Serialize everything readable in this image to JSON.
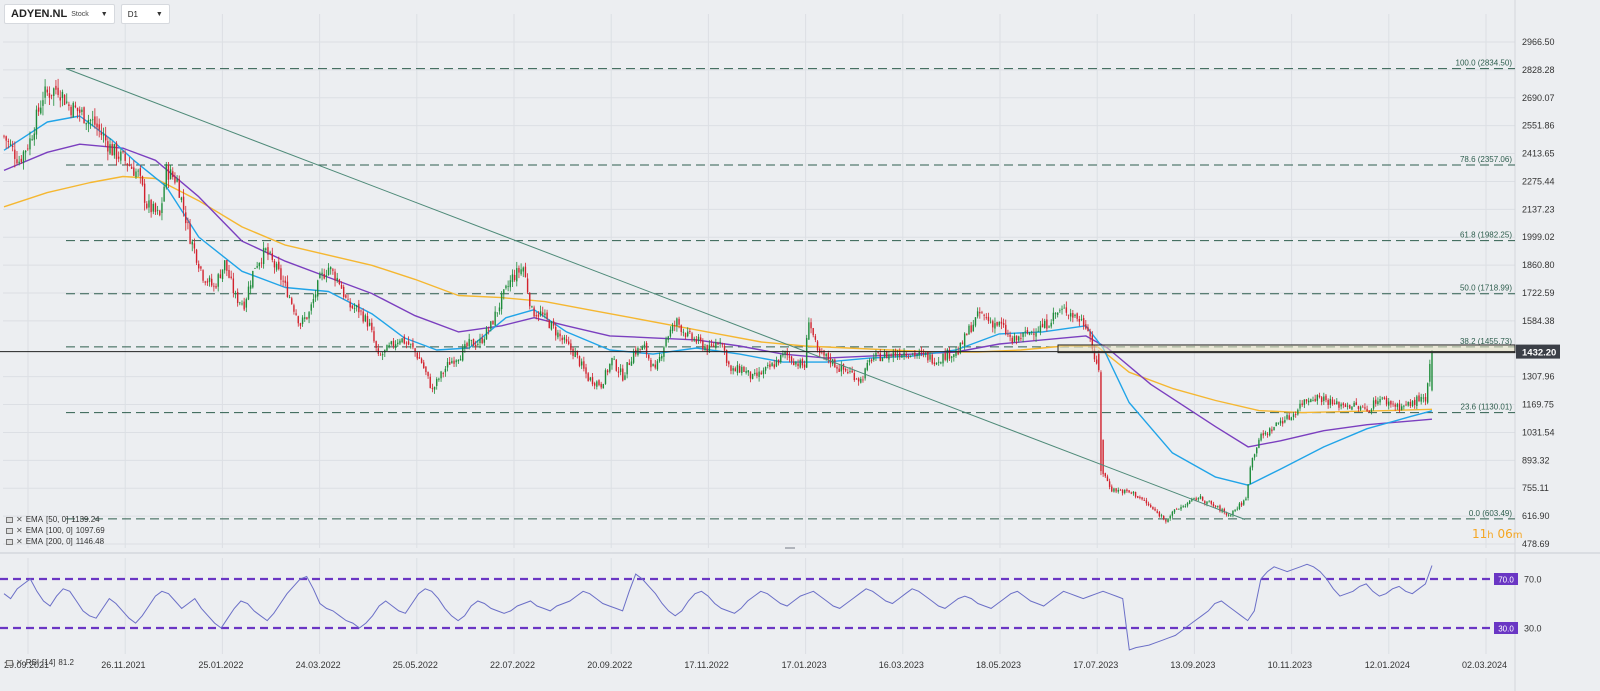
{
  "header": {
    "symbol": "ADYEN.NL",
    "symbol_type": "Stock",
    "timeframe": "D1"
  },
  "indicators": [
    {
      "label": "EMA",
      "params": "[50,  0]",
      "value": "1139.24",
      "color": "#20a4e8"
    },
    {
      "label": "EMA",
      "params": "[100,  0]",
      "value": "1097.69",
      "color": "#7b3fbf"
    },
    {
      "label": "EMA",
      "params": "[200,  0]",
      "value": "1146.48",
      "color": "#f5b731"
    }
  ],
  "timer": {
    "hours": "11",
    "h": "h",
    "minutes": "06",
    "m": "m"
  },
  "rsi": {
    "label": "RSI",
    "params": "[14]",
    "value": "81.2",
    "overbought": "70.0",
    "oversold": "30.0"
  },
  "colors": {
    "bull": "#1e8c3a",
    "bear": "#d2222d",
    "ema50": "#20a4e8",
    "ema100": "#7b3fbf",
    "ema200": "#f5b731",
    "rsi_line": "#6b6fc7",
    "rsi_levels": "#6a36c4",
    "fib": "#2e5e4e",
    "trendline": "#4e8a78",
    "price_tag": "#3b3f47"
  },
  "chart_data": [
    {
      "type": "candlestick",
      "title": "ADYEN.NL",
      "timeframe": "D1",
      "x_tick_labels": [
        "29.09.2021",
        "26.11.2021",
        "25.01.2022",
        "24.03.2022",
        "25.05.2022",
        "22.07.2022",
        "20.09.2022",
        "17.11.2022",
        "17.01.2023",
        "16.03.2023",
        "18.05.2023",
        "17.07.2023",
        "13.09.2023",
        "10.11.2023",
        "12.01.2024",
        "02.03.2024"
      ],
      "y_tick_labels": [
        "2966.50",
        "2828.28",
        "2690.07",
        "2551.86",
        "2413.65",
        "2275.44",
        "2137.23",
        "1999.02",
        "1860.80",
        "1722.59",
        "1584.38",
        "1307.96",
        "1169.75",
        "1031.54",
        "893.32",
        "755.11",
        "616.90",
        "478.69"
      ],
      "ylim": [
        478.69,
        2966.5
      ],
      "last_price": "1432.20",
      "fibonacci": [
        {
          "label": "100.0 (2834.50)",
          "value": 2834.5
        },
        {
          "label": "78.6 (2357.06)",
          "value": 2357.06
        },
        {
          "label": "61.8 (1982.25)",
          "value": 1982.25
        },
        {
          "label": "50.0 (1718.99)",
          "value": 1718.99
        },
        {
          "label": "38.2 (1455.73)",
          "value": 1455.73
        },
        {
          "label": "23.6 (1130.01)",
          "value": 1130.01
        },
        {
          "label": "0.0 (603.49)",
          "value": 603.49
        }
      ],
      "trendline": [
        [
          "29.09.2021-ish",
          2834.5
        ],
        [
          "13.09.2023-ish",
          600
        ]
      ],
      "close_path": [
        [
          0,
          2500
        ],
        [
          7,
          2380
        ],
        [
          12,
          2480
        ],
        [
          18,
          2700
        ],
        [
          25,
          2740
        ],
        [
          30,
          2650
        ],
        [
          35,
          2620
        ],
        [
          42,
          2560
        ],
        [
          50,
          2430
        ],
        [
          57,
          2370
        ],
        [
          62,
          2310
        ],
        [
          66,
          2160
        ],
        [
          72,
          2100
        ],
        [
          75,
          2330
        ],
        [
          80,
          2280
        ],
        [
          86,
          2000
        ],
        [
          92,
          1810
        ],
        [
          97,
          1750
        ],
        [
          102,
          1870
        ],
        [
          107,
          1700
        ],
        [
          111,
          1670
        ],
        [
          116,
          1860
        ],
        [
          121,
          1930
        ],
        [
          127,
          1820
        ],
        [
          131,
          1730
        ],
        [
          137,
          1570
        ],
        [
          141,
          1620
        ],
        [
          146,
          1790
        ],
        [
          150,
          1850
        ],
        [
          155,
          1780
        ],
        [
          159,
          1660
        ],
        [
          164,
          1640
        ],
        [
          169,
          1560
        ],
        [
          173,
          1400
        ],
        [
          178,
          1450
        ],
        [
          183,
          1500
        ],
        [
          188,
          1460
        ],
        [
          193,
          1380
        ],
        [
          198,
          1240
        ],
        [
          201,
          1300
        ],
        [
          206,
          1380
        ],
        [
          211,
          1420
        ],
        [
          215,
          1470
        ],
        [
          220,
          1480
        ],
        [
          225,
          1560
        ],
        [
          230,
          1690
        ],
        [
          235,
          1800
        ],
        [
          240,
          1850
        ],
        [
          244,
          1630
        ],
        [
          248,
          1620
        ],
        [
          253,
          1560
        ],
        [
          258,
          1490
        ],
        [
          264,
          1420
        ],
        [
          270,
          1300
        ],
        [
          276,
          1270
        ],
        [
          281,
          1390
        ],
        [
          286,
          1310
        ],
        [
          291,
          1430
        ],
        [
          296,
          1450
        ],
        [
          301,
          1330
        ],
        [
          306,
          1500
        ],
        [
          311,
          1580
        ],
        [
          316,
          1510
        ],
        [
          321,
          1480
        ],
        [
          326,
          1440
        ],
        [
          331,
          1500
        ],
        [
          336,
          1330
        ],
        [
          341,
          1350
        ],
        [
          346,
          1300
        ],
        [
          351,
          1330
        ],
        [
          356,
          1370
        ],
        [
          361,
          1420
        ],
        [
          366,
          1380
        ],
        [
          370,
          1360
        ],
        [
          372,
          1600
        ],
        [
          376,
          1420
        ],
        [
          381,
          1400
        ],
        [
          386,
          1350
        ],
        [
          391,
          1330
        ],
        [
          396,
          1290
        ],
        [
          401,
          1400
        ],
        [
          406,
          1410
        ],
        [
          411,
          1420
        ],
        [
          416,
          1430
        ],
        [
          421,
          1420
        ],
        [
          426,
          1410
        ],
        [
          431,
          1390
        ],
        [
          436,
          1420
        ],
        [
          441,
          1430
        ],
        [
          446,
          1540
        ],
        [
          451,
          1620
        ],
        [
          456,
          1580
        ],
        [
          461,
          1560
        ],
        [
          466,
          1480
        ],
        [
          471,
          1510
        ],
        [
          476,
          1540
        ],
        [
          481,
          1560
        ],
        [
          486,
          1620
        ],
        [
          491,
          1640
        ],
        [
          496,
          1600
        ],
        [
          501,
          1560
        ],
        [
          505,
          1350
        ],
        [
          508,
          830
        ],
        [
          512,
          750
        ],
        [
          517,
          740
        ],
        [
          522,
          730
        ],
        [
          527,
          690
        ],
        [
          532,
          640
        ],
        [
          537,
          600
        ],
        [
          542,
          650
        ],
        [
          547,
          680
        ],
        [
          552,
          710
        ],
        [
          557,
          680
        ],
        [
          562,
          650
        ],
        [
          566,
          620
        ],
        [
          570,
          660
        ],
        [
          574,
          700
        ],
        [
          576,
          870
        ],
        [
          580,
          1000
        ],
        [
          585,
          1040
        ],
        [
          590,
          1090
        ],
        [
          595,
          1110
        ],
        [
          600,
          1180
        ],
        [
          605,
          1210
        ],
        [
          610,
          1200
        ],
        [
          615,
          1170
        ],
        [
          620,
          1170
        ],
        [
          625,
          1160
        ],
        [
          630,
          1140
        ],
        [
          635,
          1200
        ],
        [
          640,
          1180
        ],
        [
          645,
          1160
        ],
        [
          650,
          1170
        ],
        [
          654,
          1200
        ],
        [
          657,
          1180
        ],
        [
          660,
          1432
        ]
      ],
      "ema50_path": [
        [
          0,
          2430
        ],
        [
          20,
          2570
        ],
        [
          35,
          2600
        ],
        [
          50,
          2480
        ],
        [
          60,
          2380
        ],
        [
          75,
          2250
        ],
        [
          90,
          2000
        ],
        [
          110,
          1830
        ],
        [
          130,
          1750
        ],
        [
          150,
          1730
        ],
        [
          170,
          1620
        ],
        [
          185,
          1500
        ],
        [
          200,
          1440
        ],
        [
          215,
          1450
        ],
        [
          232,
          1600
        ],
        [
          245,
          1640
        ],
        [
          260,
          1530
        ],
        [
          280,
          1440
        ],
        [
          300,
          1420
        ],
        [
          320,
          1450
        ],
        [
          340,
          1420
        ],
        [
          360,
          1380
        ],
        [
          380,
          1380
        ],
        [
          400,
          1400
        ],
        [
          420,
          1410
        ],
        [
          440,
          1440
        ],
        [
          460,
          1520
        ],
        [
          480,
          1530
        ],
        [
          500,
          1560
        ],
        [
          508,
          1450
        ],
        [
          520,
          1180
        ],
        [
          540,
          930
        ],
        [
          560,
          810
        ],
        [
          575,
          770
        ],
        [
          590,
          850
        ],
        [
          610,
          960
        ],
        [
          630,
          1050
        ],
        [
          650,
          1110
        ],
        [
          660,
          1139
        ]
      ],
      "ema100_path": [
        [
          0,
          2330
        ],
        [
          20,
          2420
        ],
        [
          35,
          2460
        ],
        [
          55,
          2440
        ],
        [
          70,
          2380
        ],
        [
          90,
          2200
        ],
        [
          110,
          1980
        ],
        [
          130,
          1880
        ],
        [
          150,
          1800
        ],
        [
          170,
          1720
        ],
        [
          190,
          1610
        ],
        [
          210,
          1530
        ],
        [
          230,
          1560
        ],
        [
          245,
          1600
        ],
        [
          260,
          1560
        ],
        [
          280,
          1510
        ],
        [
          300,
          1500
        ],
        [
          320,
          1490
        ],
        [
          340,
          1460
        ],
        [
          360,
          1420
        ],
        [
          380,
          1400
        ],
        [
          400,
          1410
        ],
        [
          420,
          1420
        ],
        [
          440,
          1430
        ],
        [
          460,
          1470
        ],
        [
          480,
          1490
        ],
        [
          500,
          1510
        ],
        [
          510,
          1450
        ],
        [
          530,
          1270
        ],
        [
          560,
          1060
        ],
        [
          575,
          960
        ],
        [
          590,
          990
        ],
        [
          610,
          1040
        ],
        [
          630,
          1070
        ],
        [
          660,
          1097
        ]
      ],
      "ema200_path": [
        [
          0,
          2150
        ],
        [
          20,
          2220
        ],
        [
          40,
          2270
        ],
        [
          55,
          2300
        ],
        [
          70,
          2290
        ],
        [
          90,
          2180
        ],
        [
          110,
          2050
        ],
        [
          130,
          1960
        ],
        [
          150,
          1910
        ],
        [
          170,
          1860
        ],
        [
          190,
          1790
        ],
        [
          210,
          1710
        ],
        [
          230,
          1700
        ],
        [
          250,
          1680
        ],
        [
          270,
          1640
        ],
        [
          290,
          1600
        ],
        [
          310,
          1560
        ],
        [
          330,
          1520
        ],
        [
          350,
          1480
        ],
        [
          370,
          1460
        ],
        [
          390,
          1450
        ],
        [
          410,
          1440
        ],
        [
          430,
          1430
        ],
        [
          450,
          1430
        ],
        [
          470,
          1440
        ],
        [
          490,
          1460
        ],
        [
          505,
          1460
        ],
        [
          520,
          1330
        ],
        [
          540,
          1250
        ],
        [
          560,
          1190
        ],
        [
          580,
          1140
        ],
        [
          600,
          1130
        ],
        [
          620,
          1135
        ],
        [
          640,
          1140
        ],
        [
          660,
          1146
        ]
      ]
    },
    {
      "type": "line",
      "title": "RSI [14]",
      "ylim": [
        0,
        100
      ],
      "levels": [
        70,
        30
      ],
      "last_value": 81.2,
      "values": [
        58,
        54,
        62,
        66,
        70,
        60,
        52,
        48,
        56,
        62,
        60,
        52,
        44,
        40,
        38,
        46,
        54,
        50,
        44,
        38,
        34,
        40,
        48,
        56,
        60,
        58,
        52,
        46,
        50,
        54,
        46,
        40,
        34,
        30,
        38,
        46,
        52,
        50,
        44,
        40,
        36,
        42,
        50,
        58,
        64,
        70,
        72,
        62,
        50,
        46,
        44,
        40,
        36,
        34,
        30,
        34,
        40,
        48,
        52,
        48,
        44,
        42,
        50,
        58,
        62,
        60,
        54,
        46,
        40,
        36,
        40,
        48,
        52,
        50,
        46,
        44,
        42,
        44,
        48,
        50,
        52,
        48,
        46,
        44,
        48,
        50,
        52,
        56,
        60,
        58,
        54,
        50,
        48,
        46,
        44,
        60,
        74,
        70,
        64,
        58,
        50,
        44,
        40,
        44,
        52,
        58,
        60,
        56,
        50,
        46,
        44,
        42,
        46,
        52,
        56,
        60,
        58,
        54,
        50,
        48,
        52,
        56,
        58,
        60,
        56,
        52,
        48,
        46,
        50,
        54,
        58,
        62,
        60,
        56,
        52,
        50,
        54,
        58,
        62,
        60,
        56,
        52,
        48,
        46,
        50,
        54,
        56,
        54,
        50,
        48,
        46,
        50,
        54,
        58,
        60,
        56,
        52,
        50,
        48,
        52,
        56,
        60,
        58,
        56,
        54,
        56,
        58,
        60,
        58,
        56,
        54,
        12,
        14,
        15,
        16,
        18,
        20,
        22,
        24,
        28,
        32,
        36,
        40,
        44,
        50,
        52,
        48,
        44,
        40,
        36,
        44,
        70,
        76,
        80,
        78,
        76,
        78,
        80,
        82,
        80,
        76,
        70,
        62,
        56,
        58,
        60,
        64,
        66,
        60,
        56,
        58,
        62,
        64,
        60,
        58,
        62,
        66,
        81
      ]
    }
  ]
}
